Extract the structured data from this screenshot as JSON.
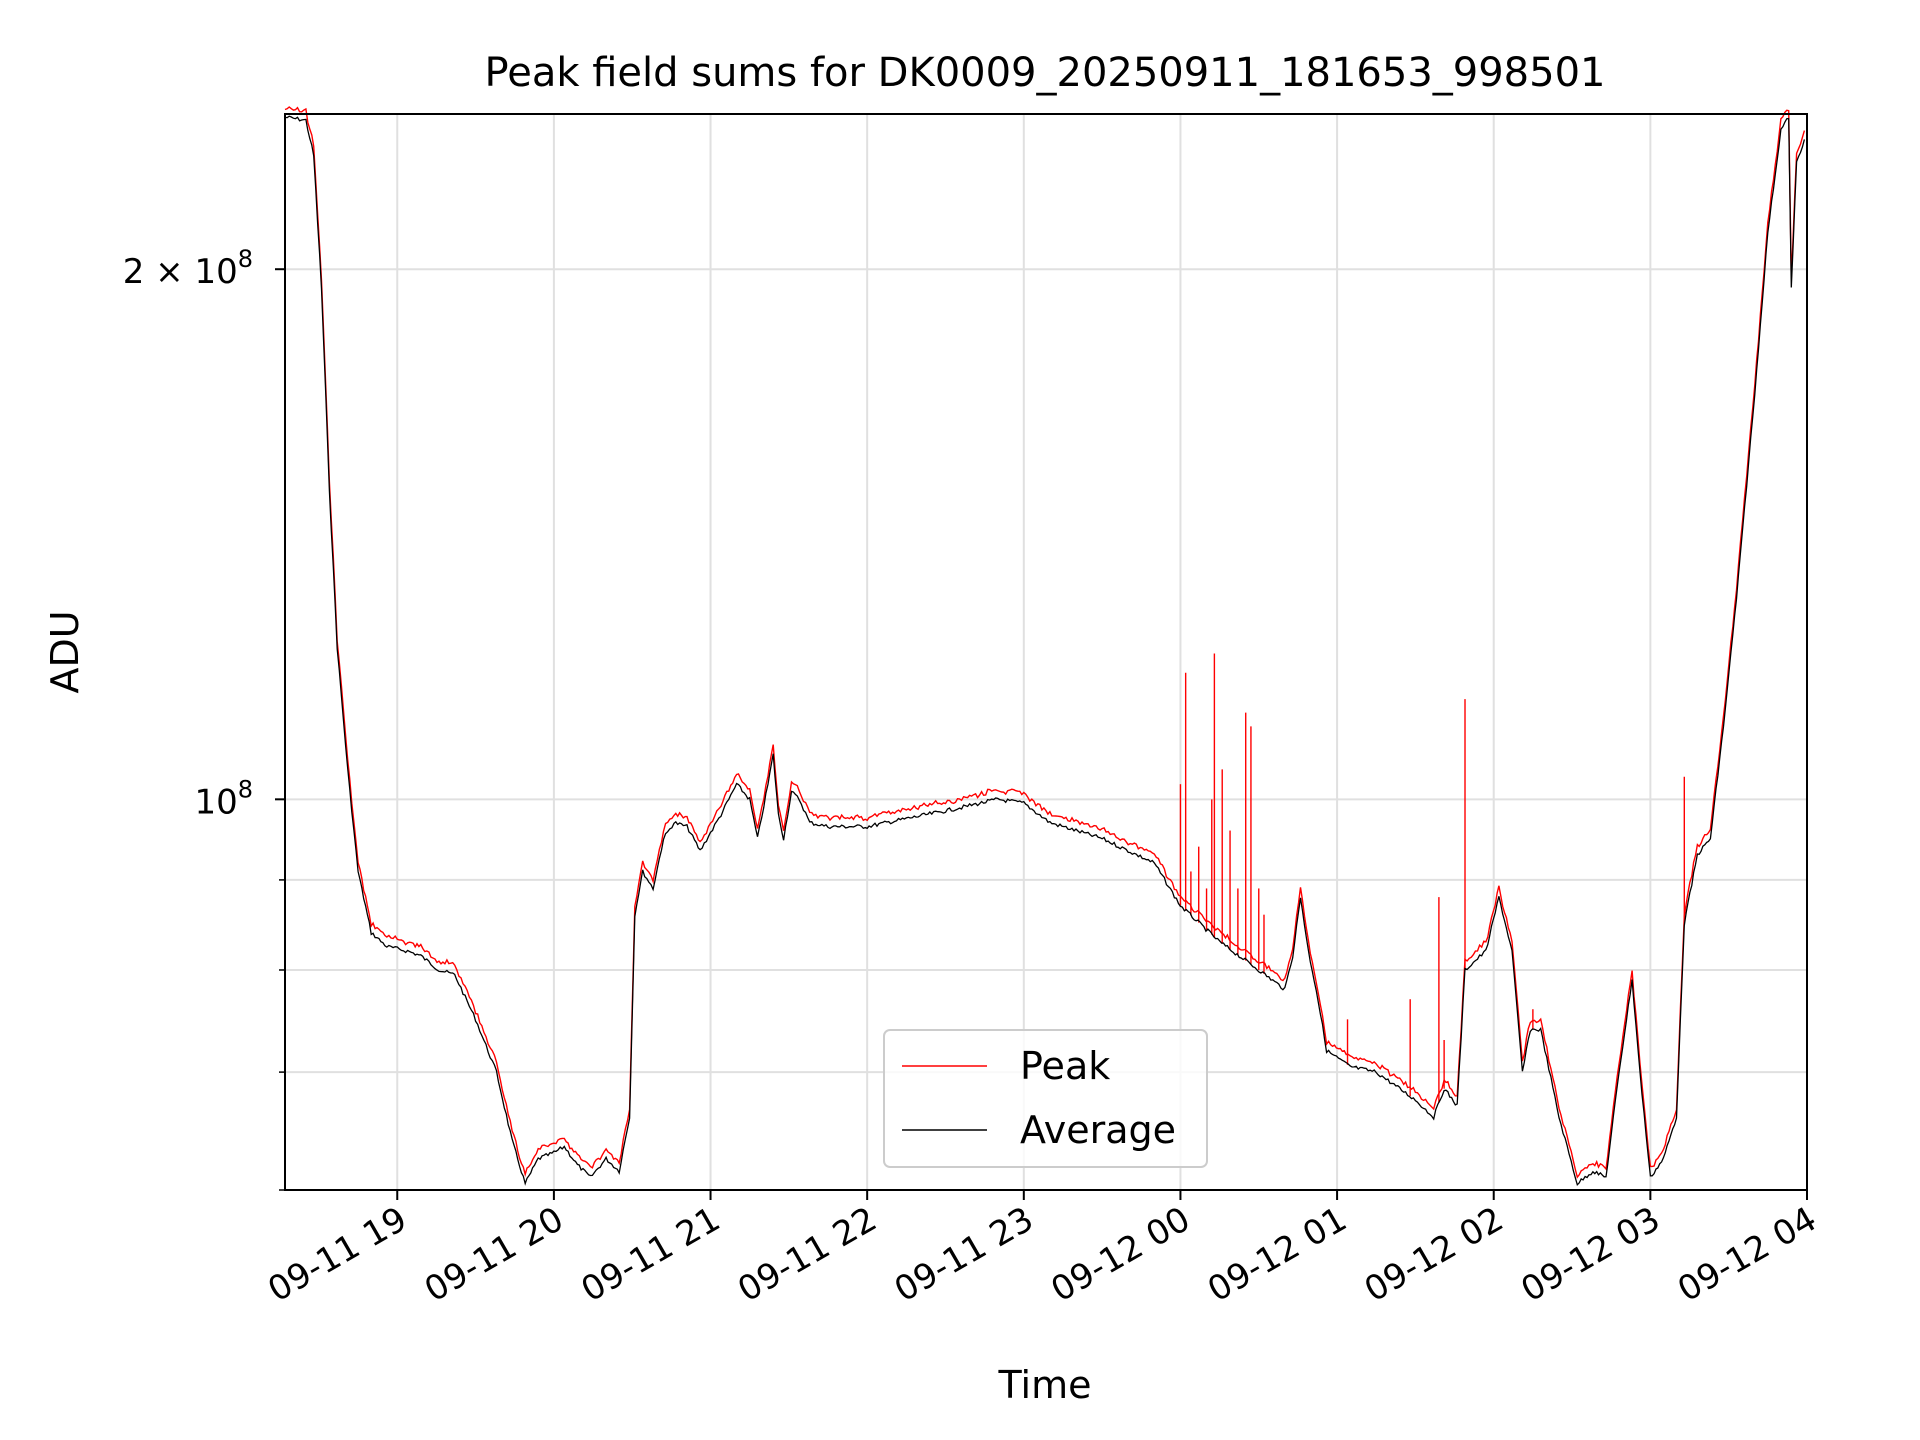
{
  "chart_data": {
    "type": "line",
    "title": "Peak field sums for DK0009_20250911_181653_998501",
    "xlabel": "Time",
    "ylabel": "ADU",
    "yscale": "log",
    "ylim": [
      60000000,
      245000000
    ],
    "xlim": [
      "2025-09-11 18:17",
      "2025-09-12 04:00"
    ],
    "grid": true,
    "legend_position": "lower-center",
    "x_ticks": [
      {
        "t": "2025-09-11 19:00",
        "label": "09-11 19"
      },
      {
        "t": "2025-09-11 20:00",
        "label": "09-11 20"
      },
      {
        "t": "2025-09-11 21:00",
        "label": "09-11 21"
      },
      {
        "t": "2025-09-11 22:00",
        "label": "09-11 22"
      },
      {
        "t": "2025-09-11 23:00",
        "label": "09-11 23"
      },
      {
        "t": "2025-09-12 00:00",
        "label": "09-12 00"
      },
      {
        "t": "2025-09-12 01:00",
        "label": "09-12 01"
      },
      {
        "t": "2025-09-12 02:00",
        "label": "09-12 02"
      },
      {
        "t": "2025-09-12 03:00",
        "label": "09-12 03"
      },
      {
        "t": "2025-09-12 04:00",
        "label": "09-12 04"
      }
    ],
    "y_ticks_major": [
      {
        "value": 100000000,
        "base": "10",
        "exp": "8"
      },
      {
        "value": 200000000,
        "base": "2 × 10",
        "exp": "8"
      }
    ],
    "y_ticks_minor": [
      60000000,
      70000000,
      80000000,
      90000000
    ],
    "series": [
      {
        "name": "Average",
        "color": "#000000",
        "points": [
          [
            "2025-09-11 18:17",
            244000000
          ],
          [
            "2025-09-11 18:25",
            243000000
          ],
          [
            "2025-09-11 18:28",
            232000000
          ],
          [
            "2025-09-11 18:31",
            195000000
          ],
          [
            "2025-09-11 18:34",
            150000000
          ],
          [
            "2025-09-11 18:37",
            122000000
          ],
          [
            "2025-09-11 18:41",
            104000000
          ],
          [
            "2025-09-11 18:45",
            91000000
          ],
          [
            "2025-09-11 18:50",
            84000000
          ],
          [
            "2025-09-11 18:56",
            82500000
          ],
          [
            "2025-09-11 19:04",
            82000000
          ],
          [
            "2025-09-11 19:09",
            81500000
          ],
          [
            "2025-09-11 19:16",
            80000000
          ],
          [
            "2025-09-11 19:22",
            79500000
          ],
          [
            "2025-09-11 19:30",
            75000000
          ],
          [
            "2025-09-11 19:38",
            70000000
          ],
          [
            "2025-09-11 19:44",
            64000000
          ],
          [
            "2025-09-11 19:49",
            60500000
          ],
          [
            "2025-09-11 19:54",
            62500000
          ],
          [
            "2025-09-11 20:00",
            63000000
          ],
          [
            "2025-09-11 20:04",
            63500000
          ],
          [
            "2025-09-11 20:09",
            62000000
          ],
          [
            "2025-09-11 20:14",
            61000000
          ],
          [
            "2025-09-11 20:20",
            62500000
          ],
          [
            "2025-09-11 20:25",
            61500000
          ],
          [
            "2025-09-11 20:29",
            66000000
          ],
          [
            "2025-09-11 20:31",
            86000000
          ],
          [
            "2025-09-11 20:34",
            91000000
          ],
          [
            "2025-09-11 20:38",
            89000000
          ],
          [
            "2025-09-11 20:42",
            95000000
          ],
          [
            "2025-09-11 20:46",
            97000000
          ],
          [
            "2025-09-11 20:51",
            96500000
          ],
          [
            "2025-09-11 20:56",
            93500000
          ],
          [
            "2025-09-11 21:04",
            98000000
          ],
          [
            "2025-09-11 21:10",
            102000000
          ],
          [
            "2025-09-11 21:15",
            100000000
          ],
          [
            "2025-09-11 21:18",
            95000000
          ],
          [
            "2025-09-11 21:22",
            102000000
          ],
          [
            "2025-09-11 21:24",
            106000000
          ],
          [
            "2025-09-11 21:26",
            98000000
          ],
          [
            "2025-09-11 21:28",
            95000000
          ],
          [
            "2025-09-11 21:31",
            101000000
          ],
          [
            "2025-09-11 21:34",
            100000000
          ],
          [
            "2025-09-11 21:38",
            97000000
          ],
          [
            "2025-09-11 21:45",
            96500000
          ],
          [
            "2025-09-11 22:00",
            96500000
          ],
          [
            "2025-09-11 22:15",
            97500000
          ],
          [
            "2025-09-11 22:30",
            98500000
          ],
          [
            "2025-09-11 22:50",
            100000000
          ],
          [
            "2025-09-11 23:00",
            99500000
          ],
          [
            "2025-09-11 23:10",
            97000000
          ],
          [
            "2025-09-11 23:30",
            95000000
          ],
          [
            "2025-09-11 23:50",
            92000000
          ],
          [
            "2025-09-12 00:00",
            87000000
          ],
          [
            "2025-09-12 00:15",
            83000000
          ],
          [
            "2025-09-12 00:30",
            80000000
          ],
          [
            "2025-09-12 00:40",
            78000000
          ],
          [
            "2025-09-12 00:43",
            81500000
          ],
          [
            "2025-09-12 00:46",
            88000000
          ],
          [
            "2025-09-12 00:49",
            82000000
          ],
          [
            "2025-09-12 00:52",
            78000000
          ],
          [
            "2025-09-12 00:56",
            72000000
          ],
          [
            "2025-09-12 01:05",
            70500000
          ],
          [
            "2025-09-12 01:15",
            70000000
          ],
          [
            "2025-09-12 01:30",
            67500000
          ],
          [
            "2025-09-12 01:37",
            66000000
          ],
          [
            "2025-09-12 01:41",
            68500000
          ],
          [
            "2025-09-12 01:46",
            67000000
          ],
          [
            "2025-09-12 01:49",
            80000000
          ],
          [
            "2025-09-12 01:53",
            81000000
          ],
          [
            "2025-09-12 01:57",
            82000000
          ],
          [
            "2025-09-12 02:02",
            88000000
          ],
          [
            "2025-09-12 02:07",
            82000000
          ],
          [
            "2025-09-12 02:11",
            70000000
          ],
          [
            "2025-09-12 02:14",
            74000000
          ],
          [
            "2025-09-12 02:18",
            74000000
          ],
          [
            "2025-09-12 02:25",
            66000000
          ],
          [
            "2025-09-12 02:32",
            60500000
          ],
          [
            "2025-09-12 02:38",
            61500000
          ],
          [
            "2025-09-12 02:43",
            61000000
          ],
          [
            "2025-09-12 02:48",
            70000000
          ],
          [
            "2025-09-12 02:53",
            79000000
          ],
          [
            "2025-09-12 02:56",
            70000000
          ],
          [
            "2025-09-12 03:00",
            61000000
          ],
          [
            "2025-09-12 03:05",
            62500000
          ],
          [
            "2025-09-12 03:10",
            66000000
          ],
          [
            "2025-09-12 03:13",
            85000000
          ],
          [
            "2025-09-12 03:18",
            93000000
          ],
          [
            "2025-09-12 03:23",
            95000000
          ],
          [
            "2025-09-12 03:28",
            110000000
          ],
          [
            "2025-09-12 03:33",
            130000000
          ],
          [
            "2025-09-12 03:40",
            170000000
          ],
          [
            "2025-09-12 03:45",
            210000000
          ],
          [
            "2025-09-12 03:50",
            240000000
          ],
          [
            "2025-09-12 03:53",
            244000000
          ],
          [
            "2025-09-12 03:54",
            195000000
          ],
          [
            "2025-09-12 03:56",
            230000000
          ],
          [
            "2025-09-12 03:59",
            237000000
          ]
        ]
      },
      {
        "name": "Peak",
        "color": "#ff0000",
        "offset_ratio": 1.01,
        "spikes": [
          [
            "2025-09-12 00:00",
            102000000
          ],
          [
            "2025-09-12 00:02",
            118000000
          ],
          [
            "2025-09-12 00:04",
            91000000
          ],
          [
            "2025-09-12 00:07",
            94000000
          ],
          [
            "2025-09-12 00:10",
            89000000
          ],
          [
            "2025-09-12 00:12",
            100000000
          ],
          [
            "2025-09-12 00:13",
            121000000
          ],
          [
            "2025-09-12 00:16",
            104000000
          ],
          [
            "2025-09-12 00:19",
            96000000
          ],
          [
            "2025-09-12 00:22",
            89000000
          ],
          [
            "2025-09-12 00:25",
            112000000
          ],
          [
            "2025-09-12 00:27",
            110000000
          ],
          [
            "2025-09-12 00:30",
            89000000
          ],
          [
            "2025-09-12 00:32",
            86000000
          ],
          [
            "2025-09-12 01:04",
            75000000
          ],
          [
            "2025-09-12 01:28",
            77000000
          ],
          [
            "2025-09-12 01:39",
            88000000
          ],
          [
            "2025-09-12 01:41",
            73000000
          ],
          [
            "2025-09-12 01:49",
            114000000
          ],
          [
            "2025-09-12 02:15",
            76000000
          ],
          [
            "2025-09-12 03:13",
            103000000
          ]
        ]
      }
    ]
  }
}
